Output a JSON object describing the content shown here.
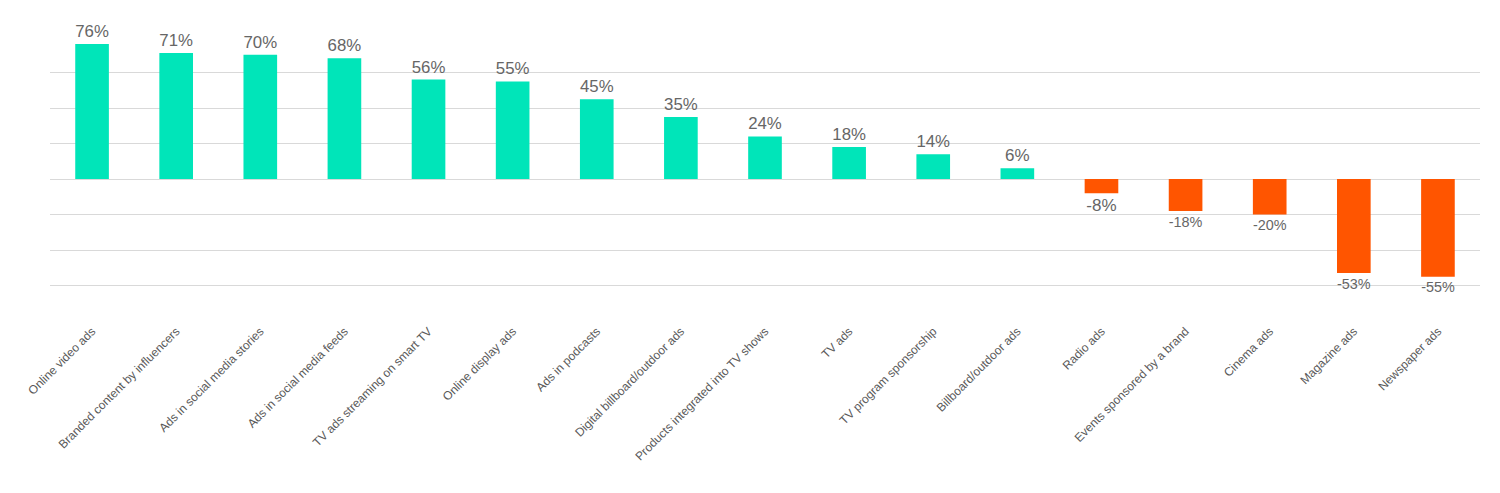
{
  "chart_data": {
    "type": "bar",
    "categories": [
      "Online video ads",
      "Branded content by influencers",
      "Ads in social media stories",
      "Ads in social media feeds",
      "TV ads streaming on smart TV",
      "Online display ads",
      "Ads in podcasts",
      "Digital billboard/outdoor ads",
      "Products integrated into TV shows",
      "TV ads",
      "TV program sponsorship",
      "Billboard/outdoor ads",
      "Radio ads",
      "Events sponsored by a brand",
      "Cinema ads",
      "Magazine ads",
      "Newspaper ads"
    ],
    "values": [
      76,
      71,
      70,
      68,
      56,
      55,
      45,
      35,
      24,
      18,
      14,
      6,
      -8,
      -18,
      -20,
      -53,
      -55
    ],
    "value_labels": [
      "76%",
      "71%",
      "70%",
      "68%",
      "56%",
      "55%",
      "45%",
      "35%",
      "24%",
      "18%",
      "14%",
      "6%",
      "-8%",
      "-18%",
      "-20%",
      "-53%",
      "-55%"
    ],
    "colors": [
      "#00e5b9",
      "#00e5b9",
      "#00e5b9",
      "#00e5b9",
      "#00e5b9",
      "#00e5b9",
      "#00e5b9",
      "#00e5b9",
      "#00e5b9",
      "#00e5b9",
      "#00e5b9",
      "#00e5b9",
      "#ff5500",
      "#ff5500",
      "#ff5500",
      "#ff5500",
      "#ff5500"
    ],
    "ylim": [
      -80,
      80
    ],
    "yticks": [
      -80,
      -60,
      -40,
      -20,
      0,
      20,
      40,
      60,
      80
    ],
    "grid": true,
    "data_labels": true,
    "tick_labels": "x"
  }
}
